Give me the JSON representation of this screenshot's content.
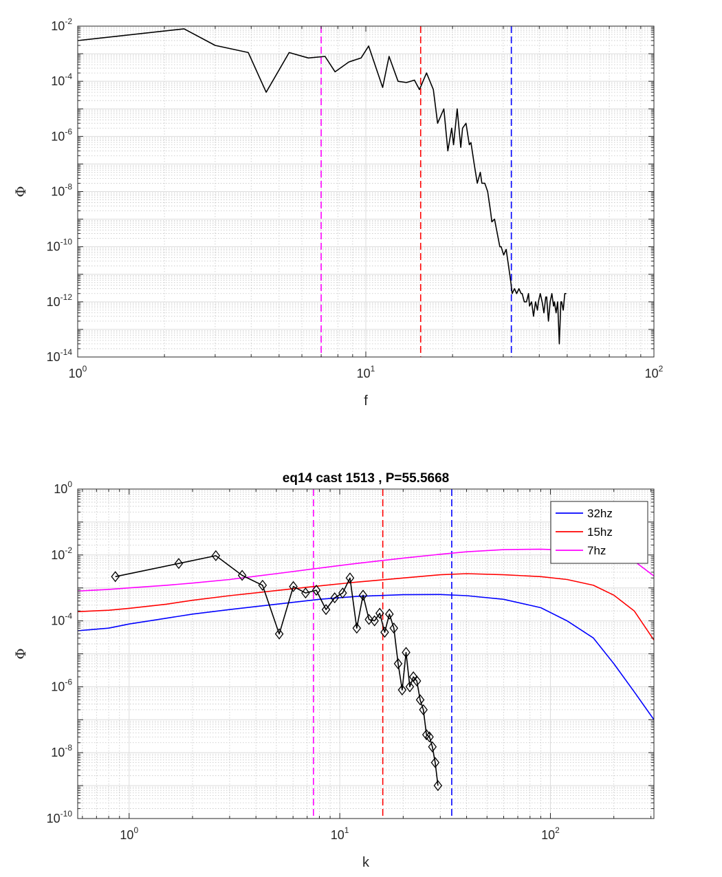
{
  "chart_data": [
    {
      "type": "line",
      "title": "",
      "xlabel": "f",
      "ylabel": "Φ",
      "xscale": "log",
      "yscale": "log",
      "xlim": [
        1,
        100
      ],
      "ylim": [
        1e-14,
        0.01
      ],
      "grid": "on (major and minor)",
      "x_ticks": [
        {
          "base": "10",
          "exp": "0"
        },
        {
          "base": "10",
          "exp": "1"
        },
        {
          "base": "10",
          "exp": "2"
        }
      ],
      "y_ticks": [
        {
          "base": "10",
          "exp": "-14"
        },
        {
          "base": "10",
          "exp": "-12"
        },
        {
          "base": "10",
          "exp": "-10"
        },
        {
          "base": "10",
          "exp": "-8"
        },
        {
          "base": "10",
          "exp": "-6"
        },
        {
          "base": "10",
          "exp": "-4"
        },
        {
          "base": "10",
          "exp": "-2"
        }
      ],
      "vlines": [
        {
          "x": 7,
          "color": "#ff00ff"
        },
        {
          "x": 15.5,
          "color": "#ff0000"
        },
        {
          "x": 32,
          "color": "#0000ff"
        }
      ],
      "series": [
        {
          "color": "#000000",
          "x": [
            1,
            2.34,
            3,
            3.91,
            4.51,
            5.42,
            6.32,
            7.22,
            7.82,
            8.73,
            9.63,
            10.23,
            11.44,
            12.04,
            12.94,
            13.84,
            14.75,
            15.35,
            16.25,
            17.15,
            17.75,
            18.66,
            19.26,
            19.86,
            20.16,
            20.76,
            21.36,
            21.67,
            22.27,
            22.87,
            23.17,
            23.77,
            24.37,
            24.97,
            25.28,
            25.88,
            26.48,
            27.08,
            27.38,
            27.98,
            28.59,
            29.19,
            29.49,
            30.09,
            30.69,
            31.29,
            31.89,
            32.2,
            32.8,
            33.4,
            34,
            34.6,
            34.9,
            35.5,
            36.11,
            36.71,
            37.01,
            37.61,
            38.21,
            38.81,
            39.42,
            39.72,
            40.32,
            40.92,
            41.52,
            42.12,
            42.43,
            43.03,
            43.63,
            44.23,
            44.83,
            45.14,
            45.74,
            46.34,
            46.94,
            47.54,
            47.84,
            48.45,
            49.05,
            49.65
          ],
          "y": [
            0.003,
            0.008,
            0.002,
            0.0011,
            4e-05,
            0.0011,
            0.0007,
            0.0008,
            0.00022,
            0.0005,
            0.0007,
            0.0019,
            6e-05,
            0.0008,
            0.0001,
            9e-05,
            0.00011,
            5e-05,
            0.0002,
            5e-05,
            3e-06,
            1e-05,
            3e-07,
            2e-06,
            5e-07,
            1e-05,
            4e-07,
            2e-06,
            3e-06,
            5e-07,
            6e-07,
            1e-07,
            2e-08,
            5e-08,
            2e-08,
            2e-08,
            1e-08,
            2e-09,
            8e-10,
            1e-09,
            3e-10,
            1e-10,
            1e-10,
            5e-11,
            8e-11,
            2e-11,
            5e-12,
            2e-12,
            3e-12,
            2e-12,
            3e-12,
            2e-12,
            2e-12,
            1e-12,
            1e-12,
            2e-12,
            7e-13,
            1e-12,
            3e-13,
            1e-12,
            5e-13,
            1e-12,
            2e-12,
            1e-12,
            4e-13,
            1.5e-12,
            1.5e-12,
            2e-13,
            1e-12,
            2e-12,
            7e-13,
            1e-12,
            4e-13,
            1e-12,
            3e-14,
            1e-12,
            1e-12,
            5e-13,
            2e-12,
            2e-12
          ]
        }
      ]
    },
    {
      "type": "line",
      "title": "eq14 cast 1513 , P=55.5668",
      "xlabel": "k",
      "ylabel": "Φ",
      "xscale": "log",
      "yscale": "log",
      "xlim": [
        0.57,
        310
      ],
      "ylim": [
        1e-10,
        1
      ],
      "grid": "on (major and minor)",
      "legend_position": "top-right",
      "x_ticks": [
        {
          "base": "10",
          "exp": "0"
        },
        {
          "base": "10",
          "exp": "1"
        },
        {
          "base": "10",
          "exp": "2"
        }
      ],
      "y_ticks": [
        {
          "base": "10",
          "exp": "-10"
        },
        {
          "base": "10",
          "exp": "-8"
        },
        {
          "base": "10",
          "exp": "-6"
        },
        {
          "base": "10",
          "exp": "-4"
        },
        {
          "base": "10",
          "exp": "-2"
        },
        {
          "base": "10",
          "exp": "0"
        }
      ],
      "vlines": [
        {
          "x": 7.5,
          "color": "#ff00ff"
        },
        {
          "x": 16,
          "color": "#ff0000"
        },
        {
          "x": 34,
          "color": "#0000ff"
        }
      ],
      "series": [
        {
          "name": "32hz",
          "color": "#0000ff",
          "x": [
            0.57,
            0.8,
            1,
            1.5,
            2,
            3,
            5,
            8,
            12,
            20,
            30,
            40,
            60,
            90,
            120,
            160,
            200,
            250,
            310
          ],
          "y": [
            5e-05,
            6e-05,
            8e-05,
            0.00012,
            0.00016,
            0.00022,
            0.00032,
            0.00045,
            0.00055,
            0.00062,
            0.00063,
            0.00058,
            0.00045,
            0.00025,
            0.0001,
            3e-05,
            5e-06,
            7e-07,
            1e-07
          ]
        },
        {
          "name": "15hz",
          "color": "#ff0000",
          "x": [
            0.57,
            0.8,
            1,
            1.5,
            2,
            3,
            5,
            8,
            12,
            20,
            30,
            40,
            60,
            90,
            120,
            160,
            200,
            250,
            310
          ],
          "y": [
            0.00019,
            0.00021,
            0.00024,
            0.00032,
            0.00042,
            0.00058,
            0.00083,
            0.00115,
            0.0015,
            0.002,
            0.0025,
            0.0027,
            0.0025,
            0.0022,
            0.0018,
            0.0012,
            0.0006,
            0.0002,
            2.6e-05
          ]
        },
        {
          "name": "7hz",
          "color": "#ff00ff",
          "x": [
            0.57,
            0.8,
            1,
            1.5,
            2,
            3,
            5,
            8,
            12,
            20,
            30,
            40,
            60,
            90,
            120,
            160,
            200,
            250,
            310
          ],
          "y": [
            0.0008,
            0.0009,
            0.001,
            0.0012,
            0.0014,
            0.0018,
            0.0027,
            0.004,
            0.0055,
            0.008,
            0.0105,
            0.0125,
            0.0145,
            0.015,
            0.014,
            0.012,
            0.0095,
            0.0065,
            0.0023
          ]
        },
        {
          "color": "#000000",
          "marker": "diamond",
          "x": [
            0.86,
            1.72,
            2.58,
            3.44,
            4.3,
            5.16,
            6.02,
            6.88,
            7.74,
            8.6,
            9.46,
            10.32,
            11.18,
            12.04,
            12.9,
            13.76,
            14.62,
            15.48,
            16.34,
            17.2,
            18.06,
            18.92,
            19.78,
            20.64,
            21.5,
            22.36,
            23.22,
            24.08,
            24.94,
            25.8,
            26.66,
            27.52,
            28.38,
            29.24
          ],
          "y": [
            0.0022,
            0.0055,
            0.0095,
            0.0024,
            0.0012,
            4e-05,
            0.0011,
            0.0007,
            0.00085,
            0.00022,
            0.0005,
            0.0007,
            0.002,
            6e-05,
            0.0006,
            0.00011,
            0.0001,
            0.00017,
            4.5e-05,
            0.00016,
            6e-05,
            5e-06,
            8e-07,
            1.1e-05,
            1e-06,
            2e-06,
            1.5e-06,
            4e-07,
            2e-07,
            3.5e-08,
            3e-08,
            1.5e-08,
            5e-09,
            1e-09
          ]
        }
      ]
    }
  ]
}
